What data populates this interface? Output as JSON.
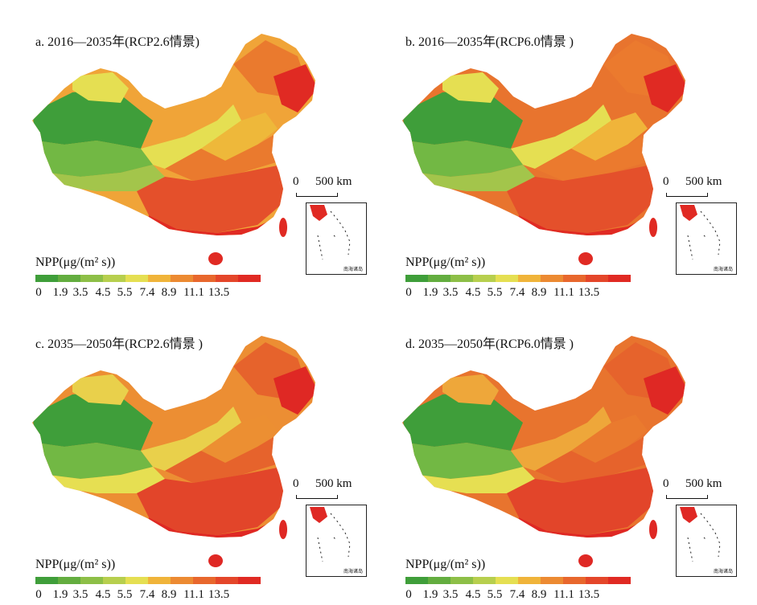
{
  "panels": [
    {
      "id": "a",
      "title": "a. 2016—2035年(RCP2.6情景)",
      "zones": {
        "z1": "#3f9e3a",
        "z2": "#72b844",
        "z3": "#a3c54b",
        "z4": "#e5df52",
        "z5": "#eeb83a",
        "z6": "#ea7a2e",
        "z7": "#e4502b",
        "z8": "#e02a23",
        "z9": "#f0a438"
      }
    },
    {
      "id": "b",
      "title": "b. 2016—2035年(RCP6.0情景 )",
      "zones": {
        "z1": "#3f9e3a",
        "z2": "#72b844",
        "z3": "#a3c54b",
        "z4": "#e5df52",
        "z5": "#f0b43a",
        "z6": "#eb7a2e",
        "z7": "#e4502b",
        "z8": "#e02a23",
        "z9": "#e8742e"
      }
    },
    {
      "id": "c",
      "title": "c. 2035—2050年(RCP2.6情景 )",
      "zones": {
        "z1": "#3f9e3a",
        "z2": "#72b844",
        "z3": "#e6df52",
        "z4": "#e9d04b",
        "z5": "#ec8f32",
        "z6": "#e6632c",
        "z7": "#e2452a",
        "z8": "#df2824",
        "z9": "#ec8e33"
      }
    },
    {
      "id": "d",
      "title": "d. 2035—2050年(RCP6.0情景 )",
      "zones": {
        "z1": "#3f9e3a",
        "z2": "#72b844",
        "z3": "#e6df52",
        "z4": "#eea73a",
        "z5": "#ea7a2e",
        "z6": "#e6632c",
        "z7": "#e2452a",
        "z8": "#df2824",
        "z9": "#e8742e"
      }
    }
  ],
  "legend": {
    "title": "NPP(μg/(m² s))",
    "ticks": [
      "0",
      "1.9",
      "3.5",
      "4.5",
      "5.5",
      "7.4",
      "8.9",
      "11.1",
      "13.5"
    ],
    "colors": [
      "#3f9e3a",
      "#63ad3f",
      "#8dbf47",
      "#b7cf4e",
      "#e5df52",
      "#f0b43a",
      "#ec8a32",
      "#e8672d",
      "#e4462a",
      "#e02a23"
    ]
  },
  "scale": {
    "zero": "0",
    "distance": "500 km"
  },
  "inset": {
    "label": "南海诸岛"
  }
}
